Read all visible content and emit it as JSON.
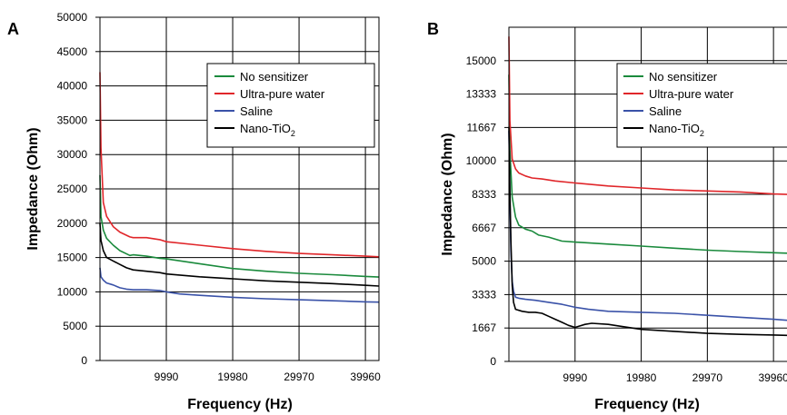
{
  "colors": {
    "no_sensitizer": "#1a8a3c",
    "ultra_pure_water": "#e0262a",
    "saline": "#3a52a8",
    "nano_tio2": "#000000"
  },
  "chart_data": [
    {
      "panel": "A",
      "type": "line",
      "xlabel": "Frequency (Hz)",
      "ylabel": "Impedance (Ohm)",
      "xlim": [
        0,
        42000
      ],
      "ylim": [
        0,
        50000
      ],
      "xticks": [
        "9990",
        "19980",
        "29970",
        "39960"
      ],
      "xtick_values": [
        9990,
        19980,
        29970,
        39960
      ],
      "yticks": [
        "0",
        "5000",
        "10000",
        "15000",
        "20000",
        "25000",
        "30000",
        "35000",
        "40000",
        "45000",
        "50000"
      ],
      "ytick_values": [
        0,
        5000,
        10000,
        15000,
        20000,
        25000,
        30000,
        35000,
        40000,
        45000,
        50000
      ],
      "grid": true,
      "legend_position": "top-right",
      "series": [
        {
          "name": "No sensitizer",
          "color_key": "no_sensitizer",
          "x": [
            0,
            150,
            500,
            1000,
            2000,
            3000,
            4500,
            5000,
            7000,
            9000,
            10000,
            15000,
            20000,
            25000,
            30000,
            35000,
            40000,
            42000
          ],
          "y": [
            27000,
            21000,
            19000,
            17800,
            16800,
            16000,
            15300,
            15400,
            15200,
            14900,
            14800,
            14100,
            13400,
            13000,
            12700,
            12500,
            12250,
            12150
          ]
        },
        {
          "name": "Ultra-pure water",
          "color_key": "ultra_pure_water",
          "x": [
            0,
            150,
            500,
            1000,
            2000,
            3000,
            4500,
            5000,
            7000,
            9000,
            10000,
            15000,
            20000,
            25000,
            30000,
            35000,
            40000,
            42000
          ],
          "y": [
            42000,
            31000,
            23000,
            21000,
            19500,
            18700,
            18000,
            17900,
            17900,
            17600,
            17300,
            16800,
            16300,
            15900,
            15600,
            15400,
            15200,
            15100
          ]
        },
        {
          "name": "Saline",
          "color_key": "saline",
          "x": [
            0,
            150,
            500,
            1000,
            2000,
            3000,
            4000,
            5000,
            7000,
            9000,
            10000,
            12000,
            15000,
            20000,
            25000,
            30000,
            35000,
            40000,
            42000
          ],
          "y": [
            13500,
            12200,
            11700,
            11300,
            11000,
            10600,
            10400,
            10300,
            10300,
            10200,
            10000,
            9700,
            9500,
            9200,
            9000,
            8850,
            8700,
            8550,
            8500
          ]
        },
        {
          "name": "Nano-TiO2",
          "color_key": "nano_tio2",
          "x": [
            0,
            150,
            500,
            1000,
            2000,
            3000,
            4000,
            5000,
            7000,
            9000,
            10000,
            15000,
            20000,
            25000,
            30000,
            35000,
            40000,
            42000
          ],
          "y": [
            20000,
            17500,
            16000,
            15000,
            14500,
            14000,
            13500,
            13200,
            13000,
            12800,
            12600,
            12200,
            11900,
            11600,
            11400,
            11200,
            10950,
            10850
          ]
        }
      ]
    },
    {
      "panel": "B",
      "type": "line",
      "xlabel": "Frequency (Hz)",
      "ylabel": "Impedance (Ohm)",
      "xlim": [
        0,
        42000
      ],
      "ylim": [
        0,
        16667
      ],
      "xticks": [
        "9990",
        "19980",
        "29970",
        "39960"
      ],
      "xtick_values": [
        9990,
        19980,
        29970,
        39960
      ],
      "yticks": [
        "0",
        "1667",
        "3333",
        "5000",
        "6667",
        "8333",
        "10000",
        "11667",
        "13333",
        "15000"
      ],
      "ytick_values": [
        0,
        1667,
        3333,
        5000,
        6667,
        8333,
        10000,
        11667,
        13333,
        15000
      ],
      "grid": true,
      "legend_position": "top-right",
      "series": [
        {
          "name": "No sensitizer",
          "color_key": "no_sensitizer",
          "x": [
            0,
            150,
            500,
            1000,
            1500,
            2500,
            3500,
            4500,
            6000,
            8000,
            10000,
            15000,
            20000,
            25000,
            30000,
            35000,
            40000,
            42000
          ],
          "y": [
            14300,
            10500,
            8200,
            7200,
            6800,
            6600,
            6500,
            6300,
            6200,
            6000,
            5950,
            5850,
            5750,
            5650,
            5550,
            5480,
            5420,
            5400
          ]
        },
        {
          "name": "Ultra-pure water",
          "color_key": "ultra_pure_water",
          "x": [
            0,
            150,
            500,
            1000,
            1500,
            2500,
            3500,
            5000,
            7000,
            10000,
            15000,
            20000,
            25000,
            30000,
            35000,
            40000,
            42000
          ],
          "y": [
            16200,
            12000,
            10100,
            9600,
            9400,
            9250,
            9150,
            9100,
            9000,
            8900,
            8750,
            8650,
            8550,
            8500,
            8450,
            8350,
            8330
          ]
        },
        {
          "name": "Saline",
          "color_key": "saline",
          "x": [
            0,
            150,
            300,
            500,
            700,
            1000,
            1500,
            2500,
            4000,
            6000,
            8000,
            10000,
            12000,
            15000,
            20000,
            25000,
            30000,
            35000,
            40000,
            42000
          ],
          "y": [
            11500,
            8000,
            5500,
            4000,
            3500,
            3200,
            3150,
            3100,
            3050,
            2950,
            2850,
            2700,
            2600,
            2500,
            2450,
            2400,
            2300,
            2200,
            2100,
            2050
          ]
        },
        {
          "name": "Nano-TiO2",
          "color_key": "nano_tio2",
          "x": [
            0,
            150,
            300,
            500,
            700,
            1000,
            2000,
            3000,
            4000,
            5000,
            6000,
            7000,
            8000,
            9000,
            9990,
            10500,
            11500,
            12500,
            15000,
            17000,
            20000,
            25000,
            30000,
            35000,
            40000,
            42000
          ],
          "y": [
            11700,
            8500,
            6000,
            3800,
            2950,
            2600,
            2500,
            2450,
            2450,
            2400,
            2250,
            2100,
            1950,
            1800,
            1700,
            1750,
            1850,
            1900,
            1850,
            1750,
            1600,
            1500,
            1400,
            1350,
            1320,
            1300
          ]
        }
      ]
    }
  ],
  "panels": [
    {
      "letter": "A",
      "xlabel": "Frequency (Hz)",
      "ylabel": "Impedance (Ohm)",
      "legend": [
        {
          "label": "No sensitizer",
          "sub": ""
        },
        {
          "label": "Ultra-pure water",
          "sub": ""
        },
        {
          "label": "Saline",
          "sub": ""
        },
        {
          "label": "Nano-TiO",
          "sub": "2"
        }
      ]
    },
    {
      "letter": "B",
      "xlabel": "Frequency (Hz)",
      "ylabel": "Impedance (Ohm)",
      "legend": [
        {
          "label": "No sensitizer",
          "sub": ""
        },
        {
          "label": "Ultra-pure water",
          "sub": ""
        },
        {
          "label": "Saline",
          "sub": ""
        },
        {
          "label": "Nano-TiO",
          "sub": "2"
        }
      ]
    }
  ]
}
